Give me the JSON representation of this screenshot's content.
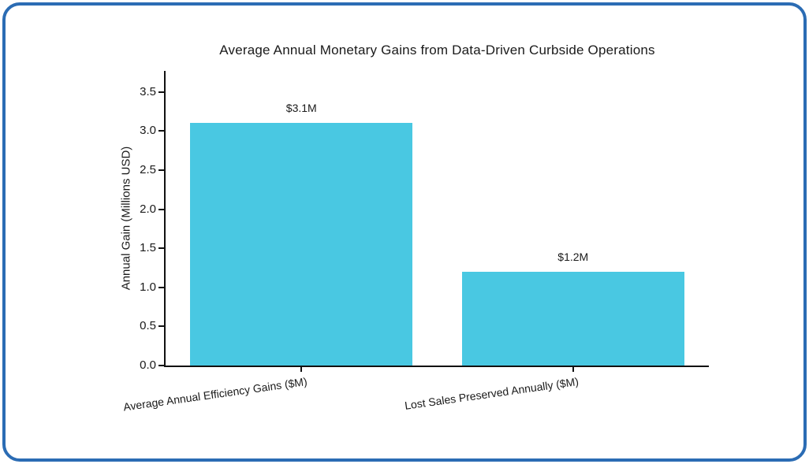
{
  "frame": {
    "border_color": "#2b6cb4",
    "background": "#ffffff"
  },
  "chart_data": {
    "type": "bar",
    "title": "Average Annual Monetary Gains from Data-Driven Curbside Operations",
    "xlabel": "",
    "ylabel": "Annual Gain (Millions USD)",
    "categories": [
      "Average Annual Efficiency Gains ($M)",
      "Lost Sales Preserved Annually ($M)"
    ],
    "values": [
      3.1,
      1.2
    ],
    "bar_value_labels": [
      "$3.1M",
      "$1.2M"
    ],
    "yticks": [
      0.0,
      0.5,
      1.0,
      1.5,
      2.0,
      2.5,
      3.0,
      3.5
    ],
    "ytick_labels": [
      "0.0",
      "0.5",
      "1.0",
      "1.5",
      "2.0",
      "2.5",
      "3.0",
      "3.5"
    ],
    "ylim": [
      0,
      3.77
    ],
    "xtick_rotation_deg": -8,
    "bar_color": "#49c8e2",
    "axis_color": "#111111",
    "text_color": "#1a1a1a",
    "grid": false,
    "legend": null
  }
}
